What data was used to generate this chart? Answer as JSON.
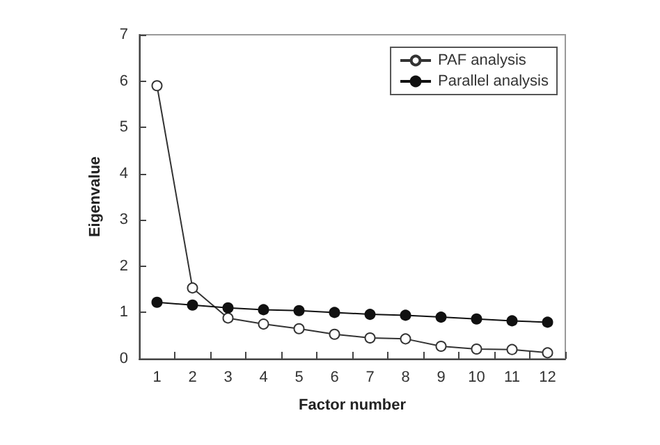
{
  "chart_data": {
    "type": "line",
    "xlabel": "Factor number",
    "ylabel": "Eigenvalue",
    "categories": [
      "1",
      "2",
      "3",
      "4",
      "5",
      "6",
      "7",
      "8",
      "9",
      "10",
      "11",
      "12"
    ],
    "series": [
      {
        "name": "PAF analysis",
        "color": "#333333",
        "values": [
          5.9,
          1.53,
          0.88,
          0.75,
          0.65,
          0.53,
          0.45,
          0.43,
          0.27,
          0.21,
          0.2,
          0.13
        ]
      },
      {
        "name": "Parallel analysis",
        "color": "#111111",
        "values": [
          1.22,
          1.16,
          1.1,
          1.06,
          1.04,
          1.0,
          0.96,
          0.94,
          0.9,
          0.86,
          0.82,
          0.79
        ]
      }
    ],
    "ylim": [
      0,
      7
    ],
    "yticks": [
      0,
      1,
      2,
      3,
      4,
      5,
      6,
      7
    ],
    "grid": false,
    "legend": "top right",
    "marker": "circle",
    "line_style": "solid"
  }
}
